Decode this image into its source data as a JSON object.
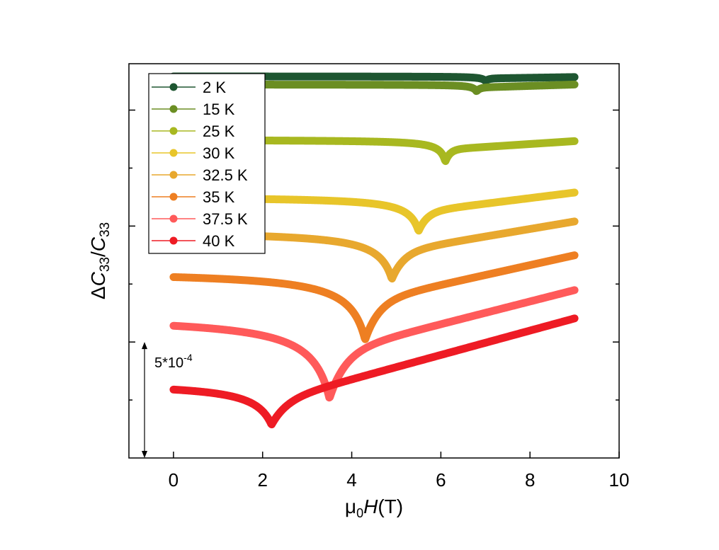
{
  "chart_data": {
    "type": "line",
    "title": "",
    "xlabel": "μ0H(T)",
    "xlabel_parts": {
      "mu": "μ",
      "sub": "0",
      "var": "H",
      "unit": "(T)"
    },
    "ylabel": "ΔC33/C33",
    "ylabel_parts": {
      "delta": "Δ",
      "c": "C",
      "sub": "33",
      "slash": "/"
    },
    "xlim": [
      -1,
      10
    ],
    "ylim": [
      0,
      34
    ],
    "xticks": [
      0,
      2,
      4,
      6,
      8,
      10
    ],
    "xtick_labels": [
      "0",
      "2",
      "4",
      "6",
      "8",
      "10"
    ],
    "yticks_major": [
      10,
      20,
      30
    ],
    "yticks_minor": [
      5,
      15,
      25
    ],
    "ytick_labels_shown": false,
    "scale_bar": {
      "label_base": "5*10",
      "label_exp": "-4",
      "x": -0.65,
      "y_from": 0,
      "y_to": 10
    },
    "legend_location": "top-left",
    "series": [
      {
        "name": "2 K",
        "color": "#1e5631",
        "base": 32.9,
        "Hc": 7.0,
        "dip": 0.4,
        "slope": 0.06,
        "width": 0.08
      },
      {
        "name": "15 K",
        "color": "#6b8e23",
        "base": 32.2,
        "Hc": 6.8,
        "dip": 0.6,
        "slope": 0.12,
        "width": 0.08
      },
      {
        "name": "25 K",
        "color": "#a8b820",
        "base": 27.4,
        "Hc": 6.1,
        "dip": 1.9,
        "slope": 0.25,
        "width": 0.12
      },
      {
        "name": "30 K",
        "color": "#e8c52a",
        "base": 22.4,
        "Hc": 5.5,
        "dip": 3.0,
        "slope": 0.48,
        "width": 0.22
      },
      {
        "name": "32.5 K",
        "color": "#e8a82e",
        "base": 19.3,
        "Hc": 4.9,
        "dip": 4.2,
        "slope": 0.65,
        "width": 0.3
      },
      {
        "name": "35 K",
        "color": "#ee7f22",
        "base": 15.6,
        "Hc": 4.3,
        "dip": 6.0,
        "slope": 0.85,
        "width": 0.35
      },
      {
        "name": "37.5 K",
        "color": "#ff5a5a",
        "base": 11.4,
        "Hc": 3.5,
        "dip": 7.2,
        "slope": 0.98,
        "width": 0.4
      },
      {
        "name": "40 K",
        "color": "#ee1b24",
        "base": 5.9,
        "Hc": 2.2,
        "dip": 3.7,
        "slope": 1.05,
        "width": 0.38
      }
    ]
  }
}
